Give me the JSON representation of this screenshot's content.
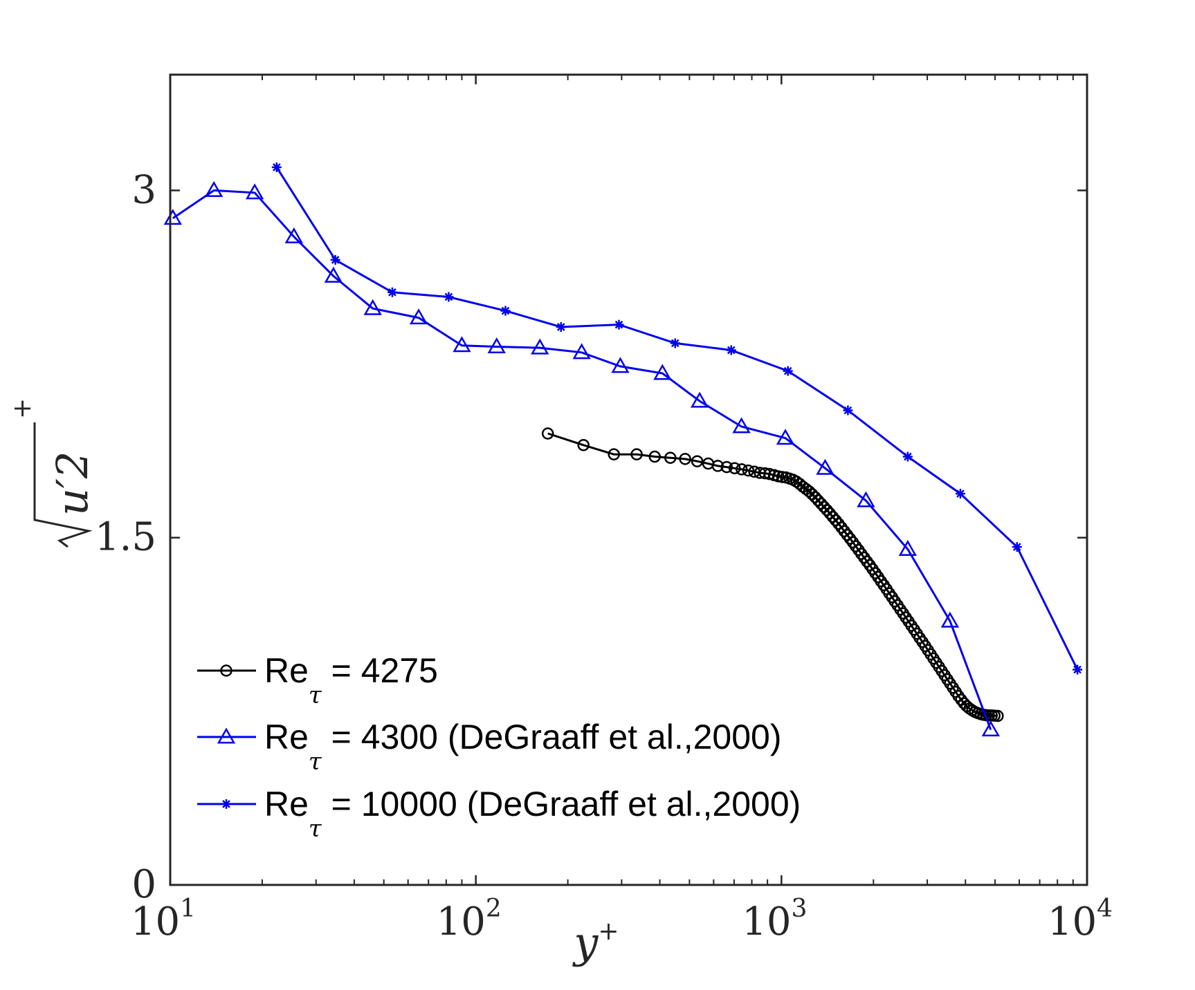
{
  "chart_data": {
    "type": "line",
    "title": "",
    "xlabel": "y",
    "xlabel_sup": "+",
    "ylabel": "u′2",
    "ylabel_sup": "+",
    "xscale": "log",
    "xlim": [
      10,
      10000
    ],
    "ylim": [
      0,
      3.5
    ],
    "x_ticks": [
      {
        "value": 10,
        "base": "10",
        "exp": "1"
      },
      {
        "value": 100,
        "base": "10",
        "exp": "2"
      },
      {
        "value": 1000,
        "base": "10",
        "exp": "3"
      },
      {
        "value": 10000,
        "base": "10",
        "exp": "4"
      }
    ],
    "y_ticks": [
      {
        "value": 0,
        "label": "0"
      },
      {
        "value": 1.5,
        "label": "1.5"
      },
      {
        "value": 3,
        "label": "3"
      }
    ],
    "grid": false,
    "legend_position": "bottom-left",
    "series": [
      {
        "name": "Re",
        "name_sub": "τ",
        "name_rest": " = 4275",
        "color": "#000000",
        "marker": "circle",
        "x": [
          172,
          225,
          283,
          336,
          385,
          433,
          484,
          530,
          576,
          619,
          662,
          703,
          741,
          779,
          815,
          850,
          883,
          914,
          946,
          976,
          1006,
          1035,
          1064,
          1092,
          1120,
          1148,
          1176,
          1204,
          1232,
          1260,
          1289,
          1318,
          1348,
          1378,
          1409,
          1440,
          1472,
          1505,
          1538,
          1572,
          1606,
          1641,
          1677,
          1713,
          1750,
          1788,
          1826,
          1865,
          1905,
          1946,
          1987,
          2029,
          2072,
          2116,
          2161,
          2207,
          2253,
          2301,
          2349,
          2399,
          2449,
          2501,
          2553,
          2607,
          2662,
          2718,
          2775,
          2833,
          2893,
          2954,
          3016,
          3079,
          3144,
          3210,
          3278,
          3347,
          3418,
          3490,
          3563,
          3639,
          3716,
          3794,
          3874,
          3956,
          4040,
          4125,
          4212,
          4301,
          4392,
          4485,
          4580,
          4677,
          4775,
          4876,
          4979,
          5100
        ],
        "y": [
          1.95,
          1.9,
          1.86,
          1.86,
          1.85,
          1.845,
          1.84,
          1.83,
          1.82,
          1.81,
          1.805,
          1.8,
          1.795,
          1.79,
          1.785,
          1.78,
          1.778,
          1.775,
          1.77,
          1.765,
          1.762,
          1.76,
          1.755,
          1.75,
          1.742,
          1.732,
          1.72,
          1.71,
          1.7,
          1.688,
          1.675,
          1.661,
          1.647,
          1.633,
          1.619,
          1.605,
          1.59,
          1.575,
          1.56,
          1.544,
          1.528,
          1.512,
          1.496,
          1.48,
          1.463,
          1.447,
          1.43,
          1.414,
          1.397,
          1.381,
          1.364,
          1.347,
          1.33,
          1.312,
          1.295,
          1.278,
          1.26,
          1.243,
          1.225,
          1.208,
          1.19,
          1.173,
          1.155,
          1.138,
          1.12,
          1.103,
          1.085,
          1.067,
          1.05,
          1.032,
          1.014,
          0.996,
          0.978,
          0.96,
          0.942,
          0.924,
          0.906,
          0.888,
          0.87,
          0.852,
          0.834,
          0.816,
          0.8,
          0.785,
          0.772,
          0.762,
          0.754,
          0.747,
          0.742,
          0.738,
          0.735,
          0.733,
          0.732,
          0.732,
          0.731,
          0.73
        ]
      },
      {
        "name": "Re",
        "name_sub": "τ",
        "name_rest": " = 4300 (DeGraaff et al.,2000)",
        "color": "#0000ee",
        "marker": "triangle",
        "x": [
          10.2,
          13.9,
          18.9,
          25.4,
          34.2,
          46,
          65,
          90,
          117,
          162,
          222,
          297,
          408,
          540,
          740,
          1030,
          1390,
          1890,
          2590,
          3560,
          4840
        ],
        "y": [
          2.88,
          3.0,
          2.99,
          2.8,
          2.63,
          2.49,
          2.45,
          2.33,
          2.325,
          2.32,
          2.3,
          2.24,
          2.21,
          2.09,
          1.98,
          1.93,
          1.8,
          1.66,
          1.45,
          1.14,
          0.67
        ]
      },
      {
        "name": "Re",
        "name_sub": "τ",
        "name_rest": " = 10000 (DeGraaff et al.,2000)",
        "color": "#0000ee",
        "marker": "asterisk",
        "x": [
          22.3,
          34.7,
          53.3,
          81.5,
          125,
          190,
          294,
          449,
          685,
          1050,
          1650,
          2590,
          3850,
          5900,
          9300
        ],
        "y": [
          3.1,
          2.7,
          2.56,
          2.54,
          2.48,
          2.41,
          2.42,
          2.34,
          2.31,
          2.22,
          2.05,
          1.85,
          1.69,
          1.46,
          0.93
        ]
      }
    ]
  }
}
